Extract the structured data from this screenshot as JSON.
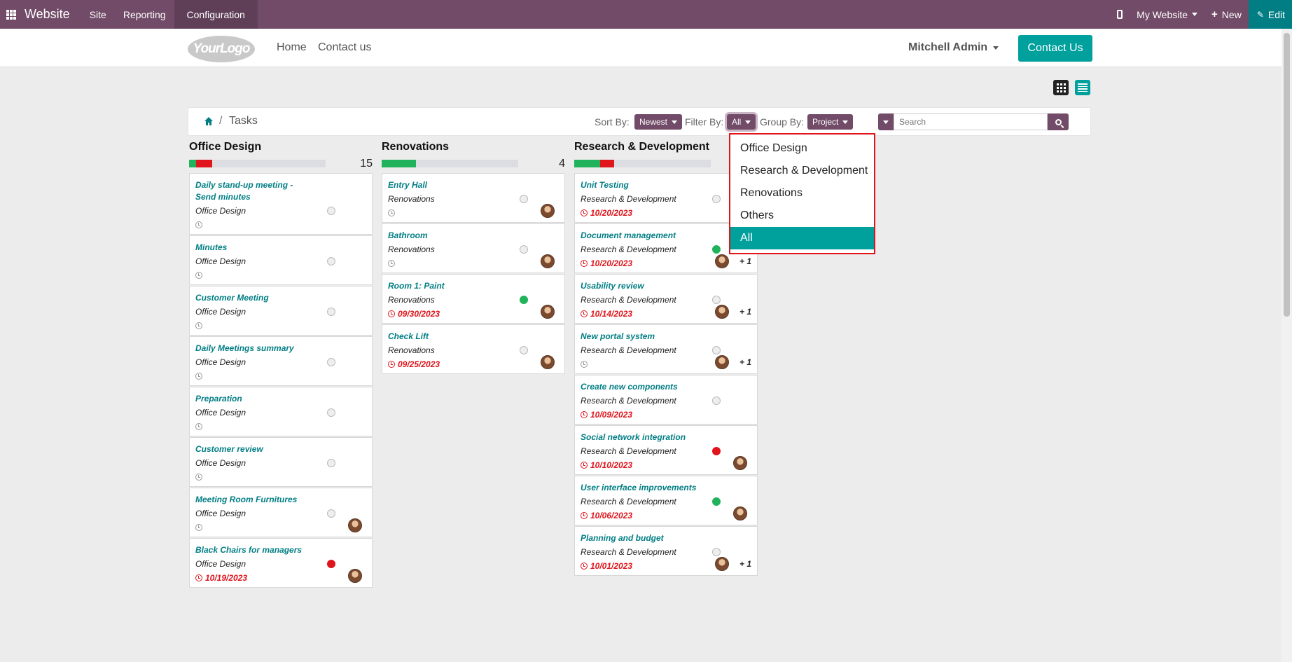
{
  "topbar": {
    "brand": "Website",
    "menus": [
      "Site",
      "Reporting",
      "Configuration"
    ],
    "site_selector": "My Website",
    "new_label": "New",
    "edit_label": "Edit"
  },
  "header": {
    "logo_text": "YourLogo",
    "nav": [
      "Home",
      "Contact us"
    ],
    "user": "Mitchell Admin",
    "contact_button": "Contact Us"
  },
  "toolbar": {
    "breadcrumb_sep": "/",
    "breadcrumb": "Tasks",
    "sort_label": "Sort By:",
    "sort_value": "Newest",
    "filter_label": "Filter By:",
    "filter_value": "All",
    "group_label": "Group By:",
    "group_value": "Project",
    "search_placeholder": "Search"
  },
  "filter_dropdown": {
    "options": [
      "Office Design",
      "Research & Development",
      "Renovations",
      "Others",
      "All"
    ],
    "selected": "All"
  },
  "colors": {
    "odoo_purple": "#714b67",
    "teal": "#00a09d",
    "link_teal": "#017e84",
    "deadline_red": "#e0141b",
    "done_green": "#21b35c"
  },
  "columns": [
    {
      "title": "Office Design",
      "count": "15",
      "progress_green_pct": 5,
      "progress_red_pct": 12,
      "cards": [
        {
          "title": "Daily stand-up meeting - Send minutes",
          "project": "Office Design",
          "date": "",
          "status": "normal",
          "avatar": false,
          "extra": ""
        },
        {
          "title": "Minutes",
          "project": "Office Design",
          "date": "",
          "status": "normal",
          "avatar": false,
          "extra": ""
        },
        {
          "title": "Customer Meeting",
          "project": "Office Design",
          "date": "",
          "status": "normal",
          "avatar": false,
          "extra": ""
        },
        {
          "title": "Daily Meetings summary",
          "project": "Office Design",
          "date": "",
          "status": "normal",
          "avatar": false,
          "extra": ""
        },
        {
          "title": "Preparation",
          "project": "Office Design",
          "date": "",
          "status": "normal",
          "avatar": false,
          "extra": ""
        },
        {
          "title": "Customer review",
          "project": "Office Design",
          "date": "",
          "status": "normal",
          "avatar": false,
          "extra": ""
        },
        {
          "title": "Meeting Room Furnitures",
          "project": "Office Design",
          "date": "",
          "status": "normal",
          "avatar": true,
          "extra": ""
        },
        {
          "title": "Black Chairs for managers",
          "project": "Office Design",
          "date": "10/19/2023",
          "status": "blocked",
          "avatar": true,
          "extra": ""
        }
      ]
    },
    {
      "title": "Renovations",
      "count": "4",
      "progress_green_pct": 25,
      "progress_red_pct": 0,
      "cards": [
        {
          "title": "Entry Hall",
          "project": "Renovations",
          "date": "",
          "status": "normal",
          "avatar": true,
          "extra": ""
        },
        {
          "title": "Bathroom",
          "project": "Renovations",
          "date": "",
          "status": "normal",
          "avatar": true,
          "extra": ""
        },
        {
          "title": "Room 1: Paint",
          "project": "Renovations",
          "date": "09/30/2023",
          "status": "done",
          "avatar": true,
          "extra": ""
        },
        {
          "title": "Check Lift",
          "project": "Renovations",
          "date": "09/25/2023",
          "status": "normal",
          "avatar": true,
          "extra": ""
        }
      ]
    },
    {
      "title": "Research & Development",
      "count": "",
      "progress_green_pct": 19,
      "progress_red_pct": 10,
      "cards": [
        {
          "title": "Unit Testing",
          "project": "Research & Development",
          "date": "10/20/2023",
          "status": "normal",
          "avatar": false,
          "extra": ""
        },
        {
          "title": "Document management",
          "project": "Research & Development",
          "date": "10/20/2023",
          "status": "done",
          "avatar": true,
          "extra": "+ 1"
        },
        {
          "title": "Usability review",
          "project": "Research & Development",
          "date": "10/14/2023",
          "status": "normal",
          "avatar": true,
          "extra": "+ 1"
        },
        {
          "title": "New portal system",
          "project": "Research & Development",
          "date": "",
          "status": "normal",
          "avatar": true,
          "extra": "+ 1"
        },
        {
          "title": "Create new components",
          "project": "Research & Development",
          "date": "10/09/2023",
          "status": "normal",
          "avatar": false,
          "extra": ""
        },
        {
          "title": "Social network integration",
          "project": "Research & Development",
          "date": "10/10/2023",
          "status": "blocked",
          "avatar": true,
          "extra": ""
        },
        {
          "title": "User interface improvements",
          "project": "Research & Development",
          "date": "10/06/2023",
          "status": "done",
          "avatar": true,
          "extra": ""
        },
        {
          "title": "Planning and budget",
          "project": "Research & Development",
          "date": "10/01/2023",
          "status": "normal",
          "avatar": true,
          "extra": "+ 1"
        }
      ]
    }
  ]
}
